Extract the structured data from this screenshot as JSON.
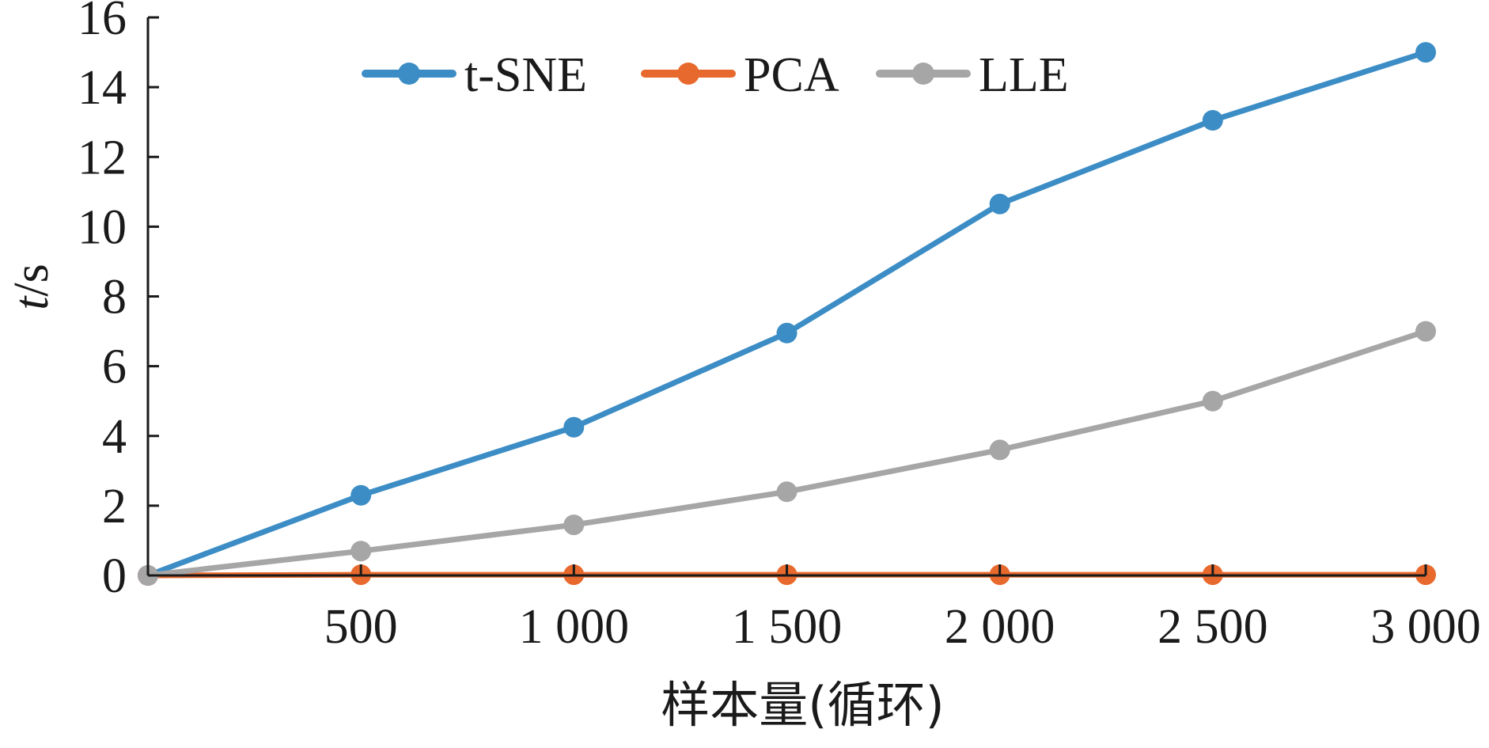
{
  "chart_data": {
    "type": "line",
    "title": "",
    "xlabel": "样本量(循环)",
    "ylabel_italic": "t",
    "ylabel_rest": "/s",
    "x": [
      0,
      500,
      1000,
      1500,
      2000,
      2500,
      3000
    ],
    "x_tick_values": [
      500,
      1000,
      1500,
      2000,
      2500,
      3000
    ],
    "x_tick_labels": [
      "500",
      "1 000",
      "1 500",
      "2 000",
      "2 500",
      "3 000"
    ],
    "xlim": [
      0,
      3000
    ],
    "ylim": [
      0,
      16
    ],
    "y_tick_values": [
      0,
      2,
      4,
      6,
      8,
      10,
      12,
      14,
      16
    ],
    "y_tick_labels": [
      "0",
      "2",
      "4",
      "6",
      "8",
      "10",
      "12",
      "14",
      "16"
    ],
    "grid": false,
    "legend_position": "top",
    "series": [
      {
        "name": "t-SNE",
        "color": "#3c8dc5",
        "values": [
          0,
          2.3,
          4.25,
          6.95,
          10.65,
          13.05,
          15.0
        ]
      },
      {
        "name": "PCA",
        "color": "#e8692d",
        "values": [
          0,
          0.02,
          0.02,
          0.02,
          0.02,
          0.02,
          0.02
        ]
      },
      {
        "name": "LLE",
        "color": "#a6a6a6",
        "values": [
          0,
          0.7,
          1.45,
          2.4,
          3.6,
          5.0,
          7.0
        ]
      }
    ]
  }
}
